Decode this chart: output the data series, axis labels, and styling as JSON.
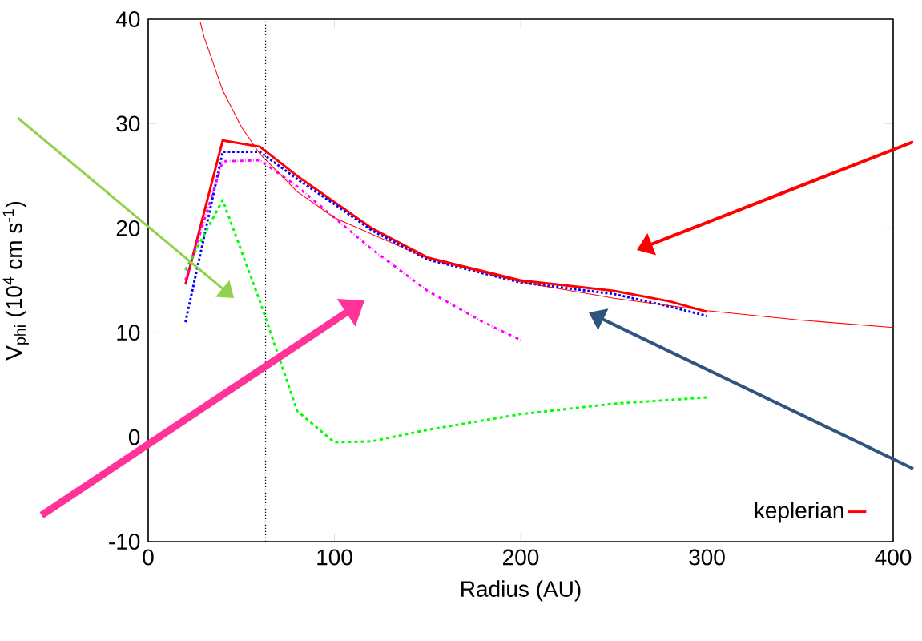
{
  "chart_data": {
    "type": "line",
    "xlabel": "Radius (AU)",
    "ylabel": "V$_{phi}$ (10$^{4}$ cm s$^{-1}$)",
    "xlim": [
      0,
      400
    ],
    "ylim": [
      -10,
      40
    ],
    "xticks": [
      0,
      100,
      200,
      300,
      400
    ],
    "yticks": [
      -10,
      0,
      10,
      20,
      30,
      40
    ],
    "legend": "bottom right",
    "marker": "none",
    "ref_lines": [
      {
        "axis": "x",
        "value": 63,
        "color": "#000000",
        "line_style": "dotted"
      }
    ],
    "series": [
      {
        "color": "#ff0000",
        "line_style": "solid",
        "x": [
          20,
          40,
          60,
          80,
          100,
          120,
          150,
          200,
          250,
          280,
          300
        ],
        "values": [
          14.6,
          28.4,
          27.8,
          25,
          22.5,
          20,
          17.2,
          15,
          14,
          13,
          12
        ]
      },
      {
        "color": "#0000ff",
        "line_style": "dotted",
        "x": [
          20,
          40,
          60,
          80,
          100,
          120,
          150,
          200,
          250,
          280,
          300
        ],
        "values": [
          11,
          27.3,
          27.3,
          24.7,
          22.3,
          19.8,
          17,
          14.8,
          13.7,
          12.5,
          11.6
        ]
      },
      {
        "color": "#ff00ff",
        "line_style": "dashdot",
        "x": [
          20,
          40,
          60,
          80,
          100,
          120,
          150,
          180,
          200
        ],
        "values": [
          15,
          26.4,
          26.5,
          24,
          21,
          18,
          14,
          11,
          9.3
        ]
      },
      {
        "color": "#00ff00",
        "line_style": "dashed",
        "x": [
          20,
          40,
          60,
          80,
          100,
          120,
          150,
          200,
          250,
          300
        ],
        "values": [
          16,
          22.7,
          13,
          2.5,
          -0.5,
          -0.4,
          0.7,
          2.2,
          3.2,
          3.8
        ]
      },
      {
        "name": "keplerian",
        "color": "#ff0000",
        "line_style": "solid",
        "x": [
          28,
          30,
          40,
          50,
          60,
          80,
          100,
          150,
          200,
          250,
          300,
          350,
          400
        ],
        "values": [
          39.7,
          38.3,
          33.2,
          29.7,
          27.1,
          23.5,
          21,
          17.1,
          14.85,
          13.3,
          12.1,
          11.2,
          10.5
        ]
      }
    ]
  }
}
